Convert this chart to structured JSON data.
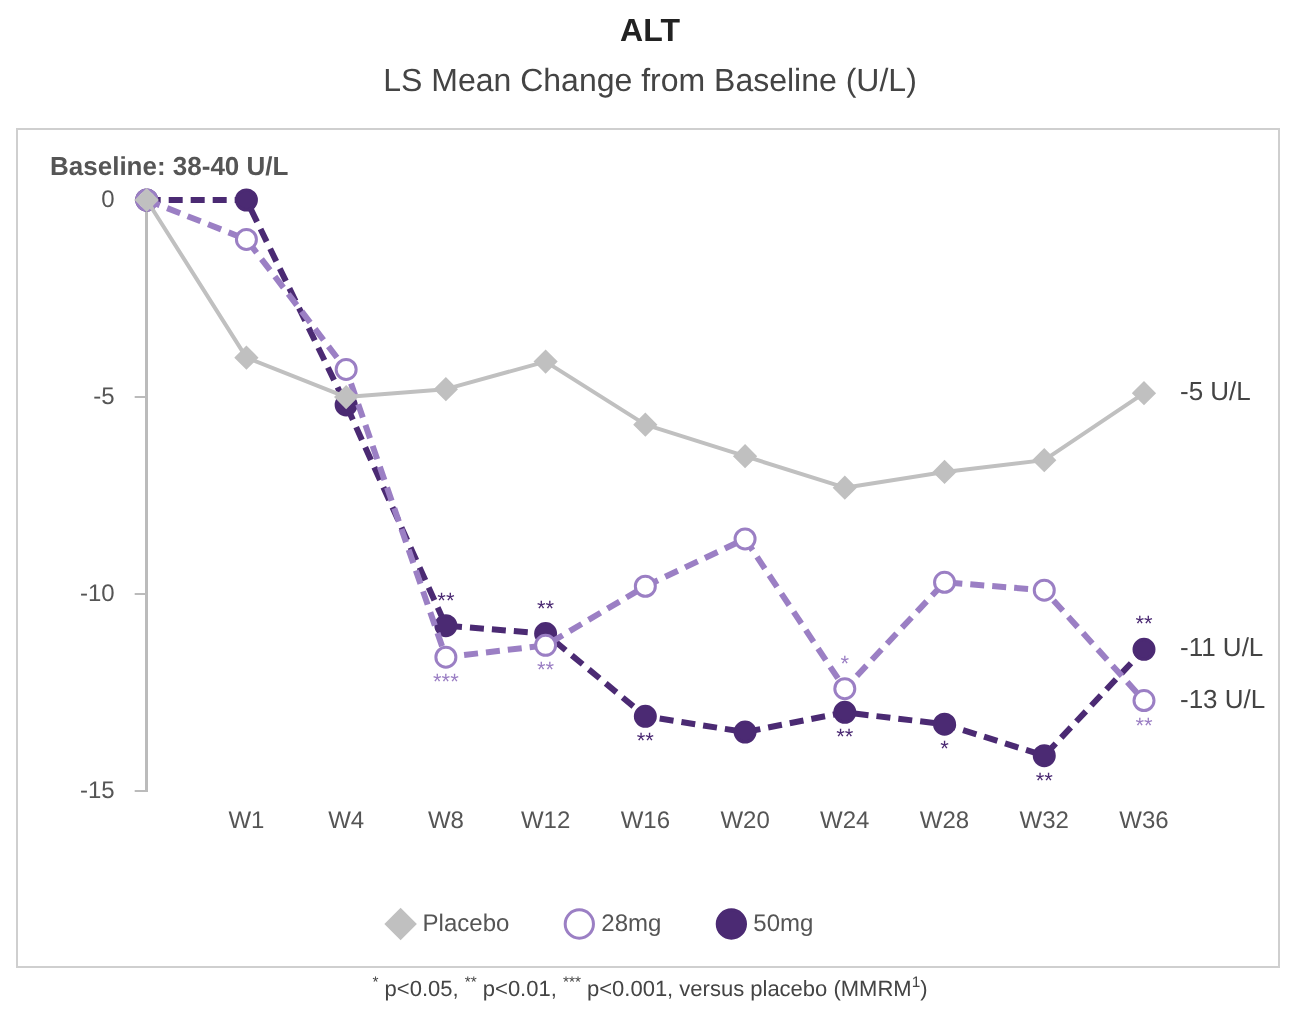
{
  "chart_data": {
    "type": "line",
    "title": "ALT",
    "subtitle": "LS Mean Change from Baseline (U/L)",
    "categories": [
      null,
      "W1",
      "W4",
      "W8",
      "W12",
      "W16",
      "W20",
      "W24",
      "W28",
      "W32",
      "W36"
    ],
    "ylim": [
      -15,
      0
    ],
    "yticks": [
      0,
      -5,
      -10,
      -15
    ],
    "grid": false,
    "legend": "bottom",
    "series": [
      {
        "name": "Placebo",
        "color": "#c0c0c0",
        "marker": "diamond",
        "line_style": "solid",
        "values": [
          0,
          -4.0,
          -5.0,
          -4.8,
          -4.1,
          -5.7,
          -6.5,
          -7.3,
          -6.9,
          -6.6,
          -4.9
        ]
      },
      {
        "name": "28mg",
        "color": "#9b7fc4",
        "marker": "circle",
        "line_style": "dashed",
        "values": [
          0,
          -1.0,
          -4.3,
          -11.6,
          -11.3,
          -9.8,
          -8.6,
          -12.4,
          -9.7,
          -9.9,
          -12.7
        ],
        "value_labels": [
          null,
          null,
          null,
          "***",
          "**",
          null,
          null,
          "*",
          null,
          null,
          "**"
        ]
      },
      {
        "name": "50mg",
        "color": "#4b2a73",
        "marker": "circle",
        "line_style": "dashed",
        "values": [
          0,
          0,
          -5.2,
          -10.8,
          -11.0,
          -13.1,
          -13.5,
          -13.0,
          -13.3,
          -14.1,
          -11.4
        ],
        "value_labels": [
          null,
          null,
          null,
          "**",
          "**",
          "**",
          null,
          "**",
          "*",
          "**",
          "**"
        ]
      }
    ],
    "annotations": [
      "Baseline: 38-40 U/L",
      "$^{*}$ p<0.05, $^{**}$ p<0.01, $^{***}$ p<0.001, versus placebo (MMRM$^{1}$)",
      "-5 U/L",
      "-11 U/L",
      "-13 U/L"
    ]
  }
}
